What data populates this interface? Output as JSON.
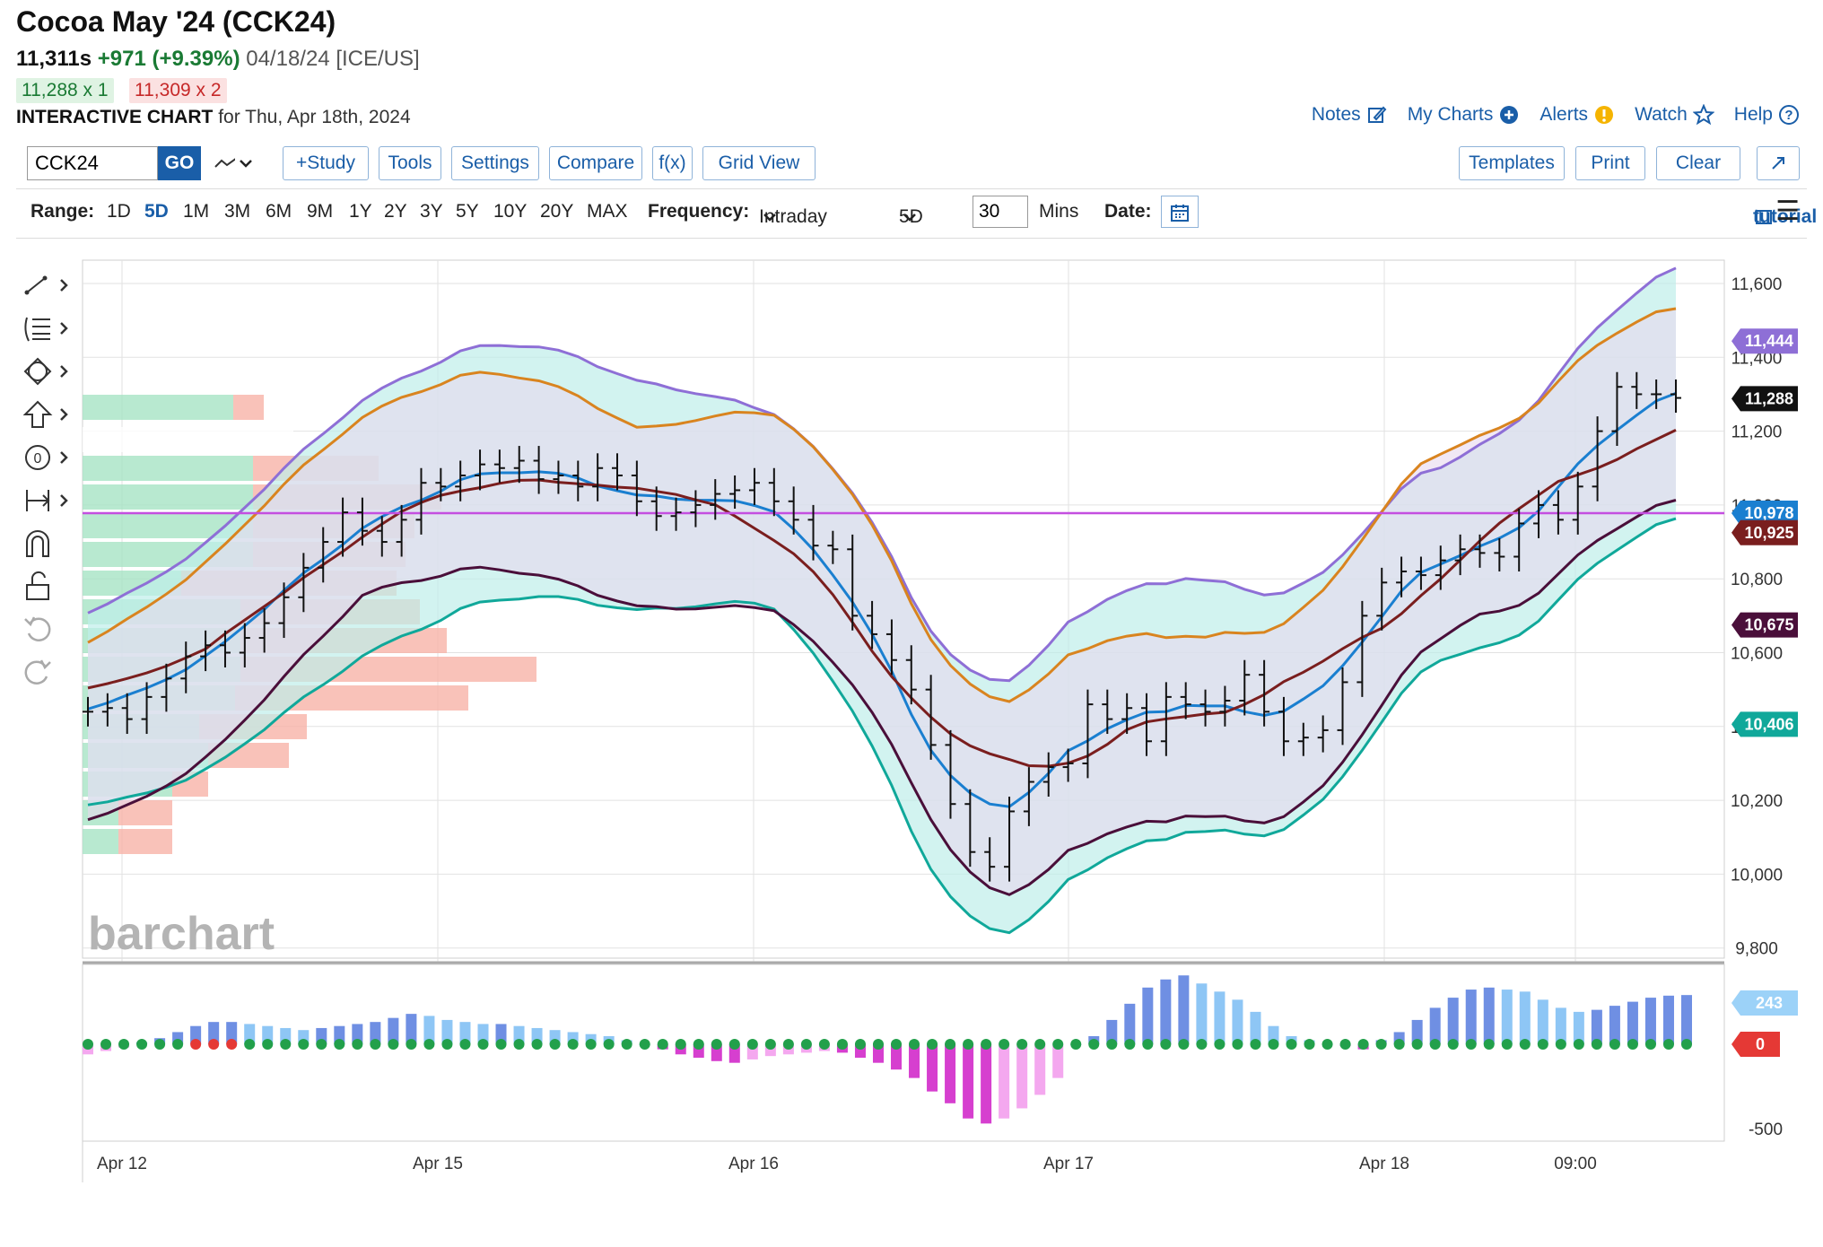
{
  "header": {
    "title": "Cocoa May '24 (CCK24)",
    "last": "11,311s",
    "change": "+971 (+9.39%)",
    "date_exchange": "04/18/24 [ICE/US]",
    "bid": "11,288 x 1",
    "ask": "11,309 x 2",
    "chart_label": "INTERACTIVE CHART",
    "chart_date": "for Thu, Apr 18th, 2024"
  },
  "toplinks": {
    "notes": "Notes",
    "my_charts": "My Charts",
    "alerts": "Alerts",
    "watch": "Watch",
    "help": "Help"
  },
  "toolbar": {
    "symbol": "CCK24",
    "go": "GO",
    "study": "+Study",
    "tools": "Tools",
    "settings": "Settings",
    "compare": "Compare",
    "fx": "f(x)",
    "grid_view": "Grid View",
    "templates": "Templates",
    "print": "Print",
    "clear": "Clear"
  },
  "rangebar": {
    "range_label": "Range:",
    "ranges": [
      "1D",
      "5D",
      "1M",
      "3M",
      "6M",
      "9M",
      "1Y",
      "2Y",
      "3Y",
      "5Y",
      "10Y",
      "20Y",
      "MAX"
    ],
    "active_range": "5D",
    "frequency_label": "Frequency:",
    "frequency": "Intraday",
    "period": "5D",
    "minutes": "30",
    "minutes_unit": "Mins",
    "date_label": "Date:",
    "tutorial": "tutorial"
  },
  "watermark": "barchart",
  "chart_data": {
    "type": "ohlc",
    "x_ticks": [
      "Apr 12",
      "Apr 15",
      "Apr 16",
      "Apr 17",
      "Apr 18",
      "09:00"
    ],
    "y_ticks": [
      "11,600",
      "11,400",
      "11,200",
      "11,000",
      "10,800",
      "10,600",
      "10,400",
      "10,200",
      "10,000",
      "9,800"
    ],
    "ylim": [
      9800,
      11650
    ],
    "grid": true,
    "horizontal_line": 10978,
    "close_series": [
      10440,
      10450,
      10420,
      10480,
      10530,
      10590,
      10620,
      10600,
      10640,
      10680,
      10750,
      10830,
      10900,
      10980,
      10930,
      10900,
      10960,
      11060,
      11050,
      11080,
      11110,
      11100,
      11120,
      11070,
      11080,
      11050,
      11100,
      11080,
      11010,
      10970,
      10980,
      11000,
      11030,
      11040,
      11060,
      11010,
      10960,
      10890,
      10880,
      10700,
      10650,
      10580,
      10500,
      10350,
      10190,
      10060,
      10020,
      10170,
      10250,
      10290,
      10300,
      10460,
      10420,
      10450,
      10360,
      10480,
      10460,
      10440,
      10470,
      10540,
      10440,
      10360,
      10370,
      10390,
      10520,
      10700,
      10790,
      10820,
      10810,
      10850,
      10880,
      10870,
      10860,
      10950,
      11000,
      10960,
      11050,
      11200,
      11320,
      11300,
      11300,
      11290
    ],
    "indicator_tags": [
      {
        "value": "11,444",
        "color": "#8e6fd6"
      },
      {
        "value": "11,288",
        "color": "#111111"
      },
      {
        "value": "10,978",
        "color": "#1a7fd0"
      },
      {
        "value": "10,925",
        "color": "#7a1e1e"
      },
      {
        "value": "10,675",
        "color": "#4a0f3a"
      },
      {
        "value": "10,406",
        "color": "#10a89a"
      }
    ],
    "histogram": {
      "y_ticks": [
        "243",
        "0",
        "-500"
      ],
      "ylim": [
        -500,
        350
      ],
      "last_value_tag": "243",
      "zero_tag": "0",
      "values": [
        -60,
        -40,
        -20,
        10,
        30,
        60,
        90,
        110,
        110,
        100,
        90,
        80,
        70,
        80,
        90,
        100,
        110,
        130,
        150,
        140,
        120,
        110,
        100,
        100,
        90,
        80,
        70,
        60,
        50,
        40,
        20,
        0,
        -30,
        -60,
        -80,
        -100,
        -110,
        -90,
        -70,
        -60,
        -50,
        -40,
        -50,
        -80,
        -110,
        -150,
        -200,
        -280,
        -350,
        -440,
        -470,
        -440,
        -380,
        -300,
        -200,
        0,
        40,
        120,
        200,
        280,
        320,
        340,
        300,
        260,
        220,
        160,
        90,
        40,
        20,
        0,
        -10,
        -30,
        20,
        60,
        120,
        180,
        230,
        270,
        280,
        270,
        260,
        220,
        180,
        160,
        170,
        190,
        210,
        230,
        240,
        243
      ]
    }
  },
  "colors": {
    "accent": "#1a5ea8",
    "up_hist": "#8ec6f5",
    "up_hist_dark": "#6f8fe3",
    "down_hist": "#d63fcf",
    "down_hist_light": "#f4a8ef",
    "zero_dot": "#22a04b"
  }
}
